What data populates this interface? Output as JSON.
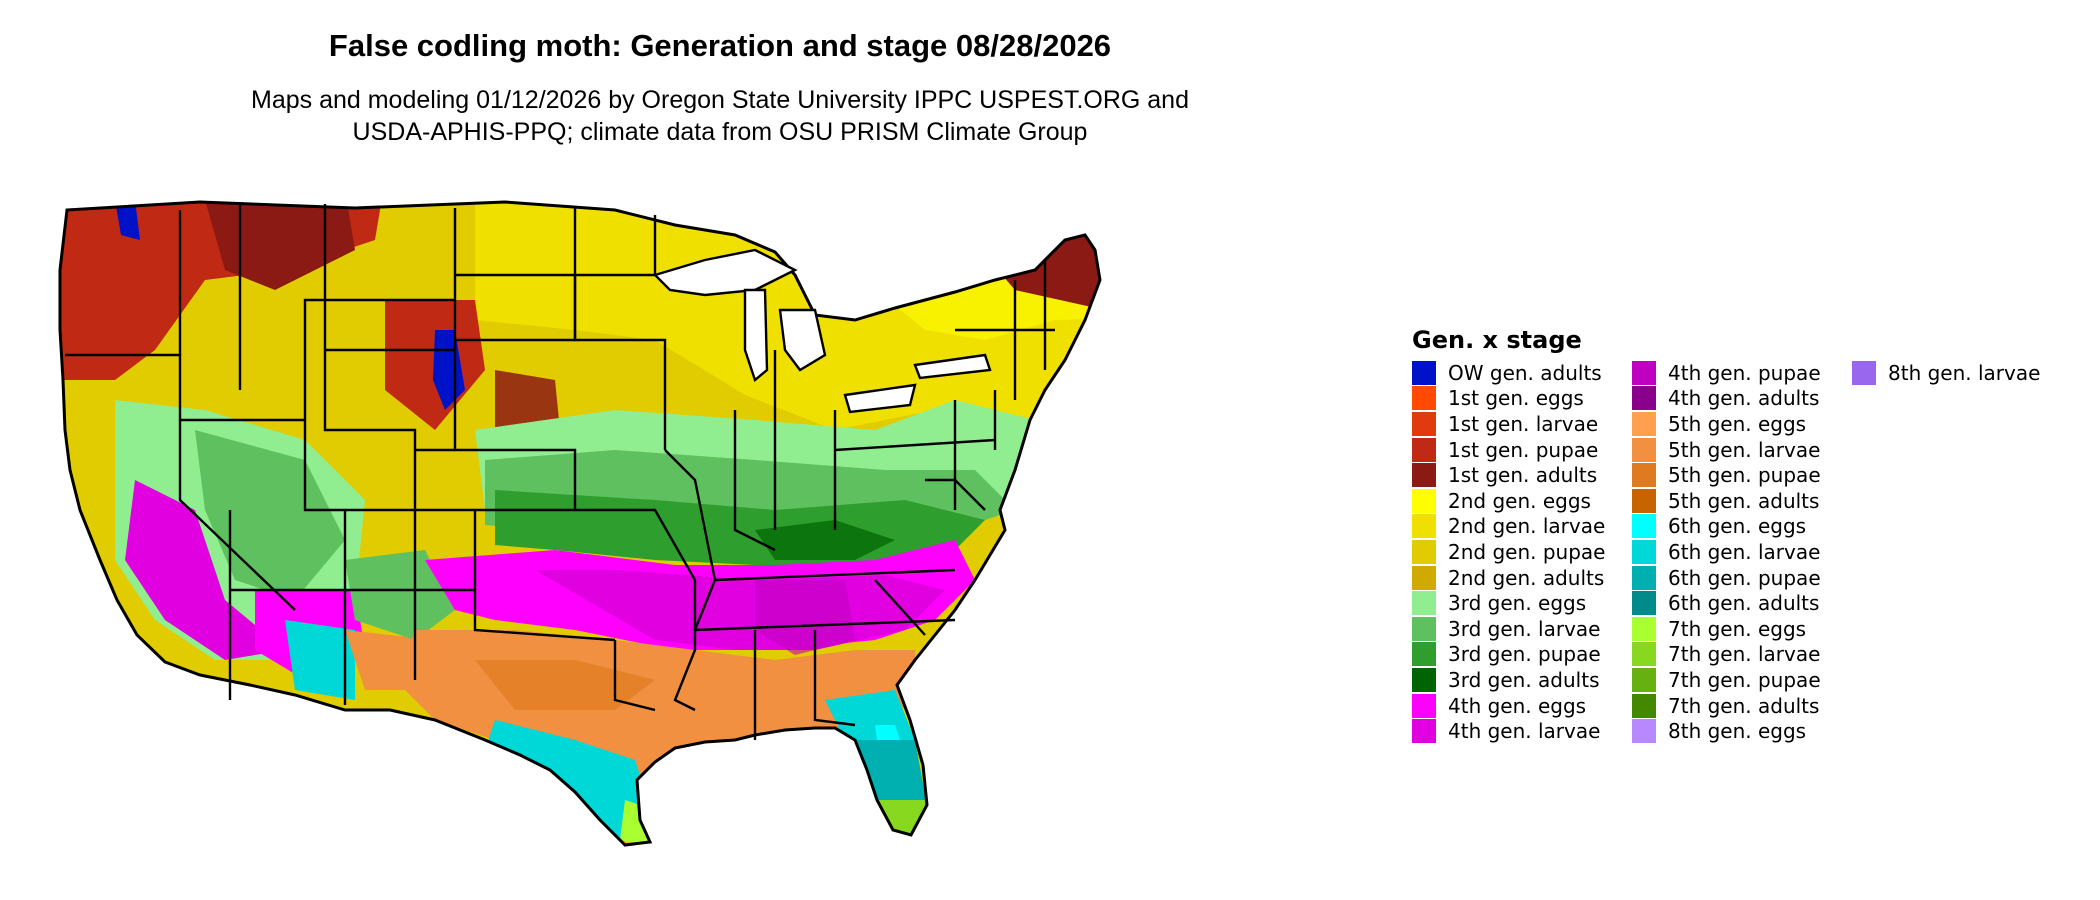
{
  "title": "False codling moth: Generation and stage 08/28/2026",
  "subtitle_line1": "Maps and modeling 01/12/2026 by Oregon State University IPPC USPEST.ORG and",
  "subtitle_line2": "USDA-APHIS-PPQ; climate data from OSU PRISM Climate Group",
  "legend": {
    "title": "Gen. x stage",
    "columns": [
      [
        {
          "label": "OW gen. adults",
          "color": "#0012c8"
        },
        {
          "label": "1st gen. eggs",
          "color": "#ff4a00"
        },
        {
          "label": "1st gen. larvae",
          "color": "#e03a10"
        },
        {
          "label": "1st gen. pupae",
          "color": "#c02a14"
        },
        {
          "label": "1st gen. adults",
          "color": "#8c1a14"
        },
        {
          "label": "2nd gen. eggs",
          "color": "#ffff00"
        },
        {
          "label": "2nd gen. larvae",
          "color": "#f0e000"
        },
        {
          "label": "2nd gen. pupae",
          "color": "#e0cc00"
        },
        {
          "label": "2nd gen. adults",
          "color": "#d0aa00"
        },
        {
          "label": "3rd gen. eggs",
          "color": "#90ee90"
        },
        {
          "label": "3rd gen. larvae",
          "color": "#5ec05e"
        },
        {
          "label": "3rd gen. pupae",
          "color": "#2e9e2e"
        },
        {
          "label": "3rd gen. adults",
          "color": "#006400"
        },
        {
          "label": "4th gen. eggs",
          "color": "#ff00ff"
        },
        {
          "label": "4th gen. larvae",
          "color": "#e000e0"
        }
      ],
      [
        {
          "label": "4th gen. pupae",
          "color": "#c000c0"
        },
        {
          "label": "4th gen. adults",
          "color": "#8b008b"
        },
        {
          "label": "5th gen. eggs",
          "color": "#ffa050"
        },
        {
          "label": "5th gen. larvae",
          "color": "#f09040"
        },
        {
          "label": "5th gen. pupae",
          "color": "#e07a20"
        },
        {
          "label": "5th gen. adults",
          "color": "#c86400"
        },
        {
          "label": "6th gen. eggs",
          "color": "#00ffff"
        },
        {
          "label": "6th gen. larvae",
          "color": "#00d8d8"
        },
        {
          "label": "6th gen. pupae",
          "color": "#00b0b0"
        },
        {
          "label": "6th gen. adults",
          "color": "#008b8b"
        },
        {
          "label": "7th gen. eggs",
          "color": "#aaff30"
        },
        {
          "label": "7th gen. larvae",
          "color": "#88d820"
        },
        {
          "label": "7th gen. pupae",
          "color": "#66b010"
        },
        {
          "label": "7th gen. adults",
          "color": "#448800"
        },
        {
          "label": "8th gen. eggs",
          "color": "#b888ff"
        }
      ],
      [
        {
          "label": "8th gen. larvae",
          "color": "#9966ee"
        }
      ]
    ]
  }
}
